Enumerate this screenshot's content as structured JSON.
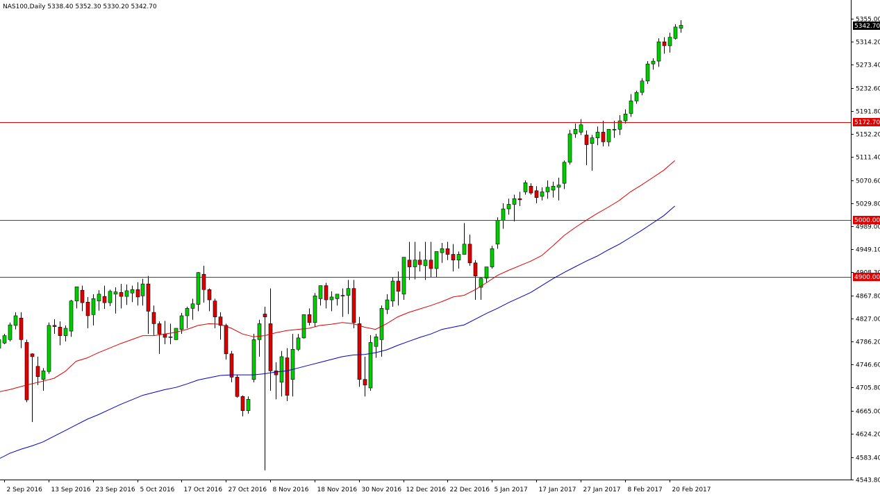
{
  "chart_data": {
    "type": "candlestick",
    "title": "NAS100,Daily  5338.40 5352.30 5330.20 5342.70",
    "ylim": [
      4543.8,
      5368.0
    ],
    "y_ticks": [
      "5355.00",
      "5314.20",
      "5273.40",
      "5232.60",
      "5191.80",
      "5152.20",
      "5111.40",
      "5070.60",
      "5029.80",
      "4989.00",
      "4949.10",
      "4908.30",
      "4867.80",
      "4827.00",
      "4786.20",
      "4746.60",
      "4705.80",
      "4665.00",
      "4624.20",
      "4583.40",
      "4543.80"
    ],
    "x_labels": [
      "2 Sep 2016",
      "13 Sep 2016",
      "23 Sep 2016",
      "5 Oct 2016",
      "17 Oct 2016",
      "27 Oct 2016",
      "8 Nov 2016",
      "18 Nov 2016",
      "30 Nov 2016",
      "12 Dec 2016",
      "22 Dec 2016",
      "5 Jan 2017",
      "17 Jan 2017",
      "27 Jan 2017",
      "8 Feb 2017",
      "20 Feb 2017"
    ],
    "x_label_bar_index": [
      1,
      9,
      17,
      25,
      33,
      41,
      49,
      57,
      65,
      73,
      81,
      89,
      97,
      105,
      113,
      121
    ],
    "horizontal_lines": [
      {
        "value": 5172.7,
        "label": "5172.70",
        "color": "#e00000"
      },
      {
        "value": 5000.0,
        "label": "5000.00",
        "color": "#e00000"
      },
      {
        "value": 4900.0,
        "label": "4900.00",
        "color": "#e00000"
      }
    ],
    "current_price": {
      "value": 5342.7,
      "label": "5342.70"
    },
    "candles": [
      [
        4775,
        4793,
        4770,
        4790
      ],
      [
        4784,
        4800,
        4782,
        4797
      ],
      [
        4790,
        4820,
        4787,
        4816
      ],
      [
        4815,
        4838,
        4808,
        4832
      ],
      [
        4828,
        4838,
        4775,
        4790
      ],
      [
        4785,
        4790,
        4680,
        4684
      ],
      [
        4765,
        4766,
        4645,
        4760
      ],
      [
        4743,
        4760,
        4710,
        4725
      ],
      [
        4720,
        4740,
        4700,
        4735
      ],
      [
        4734,
        4820,
        4730,
        4815
      ],
      [
        4815,
        4826,
        4800,
        4813
      ],
      [
        4812,
        4822,
        4780,
        4797
      ],
      [
        4797,
        4815,
        4787,
        4810
      ],
      [
        4805,
        4860,
        4795,
        4858
      ],
      [
        4858,
        4883,
        4845,
        4883
      ],
      [
        4877,
        4885,
        4840,
        4855
      ],
      [
        4856,
        4865,
        4810,
        4832
      ],
      [
        4834,
        4870,
        4815,
        4862
      ],
      [
        4858,
        4877,
        4841,
        4870
      ],
      [
        4866,
        4885,
        4844,
        4855
      ],
      [
        4855,
        4878,
        4849,
        4875
      ],
      [
        4870,
        4882,
        4836,
        4874
      ],
      [
        4873,
        4888,
        4845,
        4866
      ],
      [
        4866,
        4887,
        4851,
        4876
      ],
      [
        4872,
        4885,
        4856,
        4878
      ],
      [
        4878,
        4891,
        4850,
        4865
      ],
      [
        4867,
        4897,
        4850,
        4888
      ],
      [
        4888,
        4902,
        4800,
        4840
      ],
      [
        4838,
        4850,
        4798,
        4818
      ],
      [
        4818,
        4822,
        4765,
        4800
      ],
      [
        4800,
        4823,
        4782,
        4794
      ],
      [
        4795,
        4818,
        4782,
        4795
      ],
      [
        4790,
        4810,
        4790,
        4810
      ],
      [
        4808,
        4837,
        4800,
        4832
      ],
      [
        4832,
        4848,
        4810,
        4845
      ],
      [
        4845,
        4862,
        4825,
        4853
      ],
      [
        4852,
        4909,
        4840,
        4908
      ],
      [
        4905,
        4920,
        4855,
        4878
      ],
      [
        4878,
        4880,
        4840,
        4860
      ],
      [
        4858,
        4862,
        4810,
        4830
      ],
      [
        4830,
        4838,
        4790,
        4815
      ],
      [
        4815,
        4818,
        4755,
        4765
      ],
      [
        4765,
        4770,
        4715,
        4724
      ],
      [
        4724,
        4728,
        4688,
        4690
      ],
      [
        4690,
        4692,
        4655,
        4665
      ],
      [
        4665,
        4690,
        4660,
        4685
      ],
      [
        4720,
        4800,
        4715,
        4790
      ],
      [
        4790,
        4825,
        4760,
        4818
      ],
      [
        4835,
        4848,
        4560,
        4830
      ],
      [
        4818,
        4880,
        4700,
        4735
      ],
      [
        4735,
        4750,
        4685,
        4728
      ],
      [
        4715,
        4770,
        4690,
        4760
      ],
      [
        4758,
        4775,
        4682,
        4692
      ],
      [
        4720,
        4800,
        4690,
        4773
      ],
      [
        4773,
        4800,
        4770,
        4793
      ],
      [
        4793,
        4834,
        4792,
        4834
      ],
      [
        4834,
        4845,
        4815,
        4820
      ],
      [
        4820,
        4872,
        4812,
        4867
      ],
      [
        4862,
        4885,
        4850,
        4885
      ],
      [
        4885,
        4890,
        4845,
        4860
      ],
      [
        4860,
        4875,
        4840,
        4865
      ],
      [
        4862,
        4870,
        4850,
        4870
      ],
      [
        4867,
        4880,
        4830,
        4868
      ],
      [
        4868,
        4895,
        4835,
        4880
      ],
      [
        4880,
        4895,
        4810,
        4820
      ],
      [
        4818,
        4830,
        4707,
        4720
      ],
      [
        4720,
        4760,
        4690,
        4710
      ],
      [
        4705,
        4798,
        4700,
        4785
      ],
      [
        4778,
        4800,
        4758,
        4795
      ],
      [
        4790,
        4850,
        4760,
        4845
      ],
      [
        4843,
        4870,
        4835,
        4860
      ],
      [
        4858,
        4900,
        4848,
        4893
      ],
      [
        4893,
        4910,
        4850,
        4875
      ],
      [
        4870,
        4935,
        4860,
        4935
      ],
      [
        4930,
        4962,
        4895,
        4918
      ],
      [
        4918,
        4962,
        4896,
        4930
      ],
      [
        4930,
        4945,
        4910,
        4922
      ],
      [
        4920,
        4962,
        4895,
        4930
      ],
      [
        4930,
        4962,
        4900,
        4915
      ],
      [
        4915,
        4940,
        4900,
        4945
      ],
      [
        4943,
        4960,
        4925,
        4950
      ],
      [
        4950,
        4962,
        4930,
        4940
      ],
      [
        4940,
        4958,
        4910,
        4930
      ],
      [
        4930,
        4945,
        4915,
        4940
      ],
      [
        4940,
        4995,
        4940,
        4958
      ],
      [
        4958,
        4975,
        4920,
        4925
      ],
      [
        4925,
        4930,
        4860,
        4902
      ],
      [
        4882,
        4900,
        4860,
        4898
      ],
      [
        4898,
        4915,
        4890,
        4918
      ],
      [
        4918,
        4955,
        4915,
        4950
      ],
      [
        4958,
        5005,
        4950,
        5000
      ],
      [
        5000,
        5030,
        4985,
        5020
      ],
      [
        5020,
        5038,
        5010,
        5028
      ],
      [
        5028,
        5045,
        4998,
        5038
      ],
      [
        5038,
        5050,
        5025,
        5036
      ],
      [
        5050,
        5070,
        5045,
        5066
      ],
      [
        5060,
        5065,
        5045,
        5048
      ],
      [
        5052,
        5060,
        5030,
        5040
      ],
      [
        5042,
        5058,
        5035,
        5050
      ],
      [
        5050,
        5070,
        5038,
        5058
      ],
      [
        5053,
        5068,
        5040,
        5060
      ],
      [
        5058,
        5075,
        5035,
        5062
      ],
      [
        5065,
        5105,
        5055,
        5102
      ],
      [
        5102,
        5159,
        5098,
        5152
      ],
      [
        5152,
        5170,
        5145,
        5160
      ],
      [
        5155,
        5178,
        5150,
        5168
      ],
      [
        5150,
        5158,
        5097,
        5133
      ],
      [
        5135,
        5150,
        5087,
        5145
      ],
      [
        5145,
        5165,
        5132,
        5155
      ],
      [
        5155,
        5175,
        5130,
        5138
      ],
      [
        5138,
        5160,
        5130,
        5160
      ],
      [
        5160,
        5175,
        5145,
        5160
      ],
      [
        5160,
        5185,
        5150,
        5175
      ],
      [
        5175,
        5195,
        5170,
        5187
      ],
      [
        5188,
        5222,
        5182,
        5210
      ],
      [
        5210,
        5228,
        5205,
        5225
      ],
      [
        5225,
        5250,
        5220,
        5245
      ],
      [
        5245,
        5280,
        5240,
        5275
      ],
      [
        5275,
        5285,
        5265,
        5280
      ],
      [
        5280,
        5320,
        5270,
        5314
      ],
      [
        5314,
        5322,
        5293,
        5307
      ],
      [
        5307,
        5330,
        5295,
        5322
      ],
      [
        5320,
        5345,
        5318,
        5340
      ],
      [
        5338,
        5352,
        5330,
        5343
      ]
    ],
    "ma_red": [
      [
        0,
        4698
      ],
      [
        2,
        4702
      ],
      [
        5,
        4710
      ],
      [
        8,
        4717
      ],
      [
        10,
        4722
      ],
      [
        12,
        4734
      ],
      [
        14,
        4752
      ],
      [
        16,
        4758
      ],
      [
        18,
        4767
      ],
      [
        20,
        4775
      ],
      [
        22,
        4783
      ],
      [
        24,
        4790
      ],
      [
        26,
        4797
      ],
      [
        28,
        4797
      ],
      [
        30,
        4800
      ],
      [
        32,
        4803
      ],
      [
        34,
        4808
      ],
      [
        36,
        4815
      ],
      [
        38,
        4818
      ],
      [
        40,
        4817
      ],
      [
        42,
        4810
      ],
      [
        44,
        4800
      ],
      [
        46,
        4795
      ],
      [
        48,
        4797
      ],
      [
        50,
        4802
      ],
      [
        52,
        4806
      ],
      [
        54,
        4808
      ],
      [
        56,
        4810
      ],
      [
        58,
        4815
      ],
      [
        60,
        4817
      ],
      [
        62,
        4820
      ],
      [
        64,
        4818
      ],
      [
        66,
        4812
      ],
      [
        68,
        4808
      ],
      [
        70,
        4818
      ],
      [
        72,
        4830
      ],
      [
        74,
        4838
      ],
      [
        76,
        4844
      ],
      [
        78,
        4850
      ],
      [
        80,
        4857
      ],
      [
        82,
        4865
      ],
      [
        84,
        4868
      ],
      [
        86,
        4878
      ],
      [
        88,
        4890
      ],
      [
        90,
        4903
      ],
      [
        92,
        4912
      ],
      [
        94,
        4920
      ],
      [
        96,
        4928
      ],
      [
        98,
        4938
      ],
      [
        100,
        4955
      ],
      [
        102,
        4973
      ],
      [
        104,
        4987
      ],
      [
        106,
        5000
      ],
      [
        108,
        5012
      ],
      [
        110,
        5023
      ],
      [
        112,
        5035
      ],
      [
        114,
        5050
      ],
      [
        116,
        5062
      ],
      [
        118,
        5075
      ],
      [
        120,
        5088
      ],
      [
        122,
        5105
      ]
    ],
    "ma_blue": [
      [
        0,
        4580
      ],
      [
        2,
        4590
      ],
      [
        4,
        4597
      ],
      [
        6,
        4603
      ],
      [
        8,
        4610
      ],
      [
        10,
        4620
      ],
      [
        12,
        4630
      ],
      [
        14,
        4640
      ],
      [
        16,
        4650
      ],
      [
        18,
        4658
      ],
      [
        20,
        4667
      ],
      [
        22,
        4676
      ],
      [
        24,
        4684
      ],
      [
        26,
        4692
      ],
      [
        28,
        4697
      ],
      [
        30,
        4702
      ],
      [
        32,
        4706
      ],
      [
        34,
        4712
      ],
      [
        36,
        4719
      ],
      [
        38,
        4723
      ],
      [
        40,
        4727
      ],
      [
        42,
        4728
      ],
      [
        44,
        4728
      ],
      [
        46,
        4728
      ],
      [
        48,
        4730
      ],
      [
        50,
        4733
      ],
      [
        52,
        4735
      ],
      [
        54,
        4740
      ],
      [
        56,
        4745
      ],
      [
        58,
        4750
      ],
      [
        60,
        4755
      ],
      [
        62,
        4760
      ],
      [
        64,
        4763
      ],
      [
        66,
        4764
      ],
      [
        68,
        4767
      ],
      [
        70,
        4772
      ],
      [
        72,
        4780
      ],
      [
        74,
        4787
      ],
      [
        76,
        4794
      ],
      [
        78,
        4800
      ],
      [
        80,
        4808
      ],
      [
        82,
        4812
      ],
      [
        84,
        4816
      ],
      [
        86,
        4826
      ],
      [
        88,
        4836
      ],
      [
        90,
        4845
      ],
      [
        92,
        4855
      ],
      [
        94,
        4864
      ],
      [
        96,
        4873
      ],
      [
        98,
        4885
      ],
      [
        100,
        4897
      ],
      [
        102,
        4908
      ],
      [
        104,
        4918
      ],
      [
        106,
        4928
      ],
      [
        108,
        4937
      ],
      [
        110,
        4948
      ],
      [
        112,
        4958
      ],
      [
        114,
        4970
      ],
      [
        116,
        4982
      ],
      [
        118,
        4995
      ],
      [
        120,
        5008
      ],
      [
        122,
        5025
      ]
    ],
    "colors": {
      "bull": "#00cc00",
      "bear": "#dd0000",
      "wick": "#000000",
      "ma_red": "#e00000",
      "ma_blue": "#0000c8",
      "hline": "#e00000",
      "axis": "#000000"
    }
  }
}
